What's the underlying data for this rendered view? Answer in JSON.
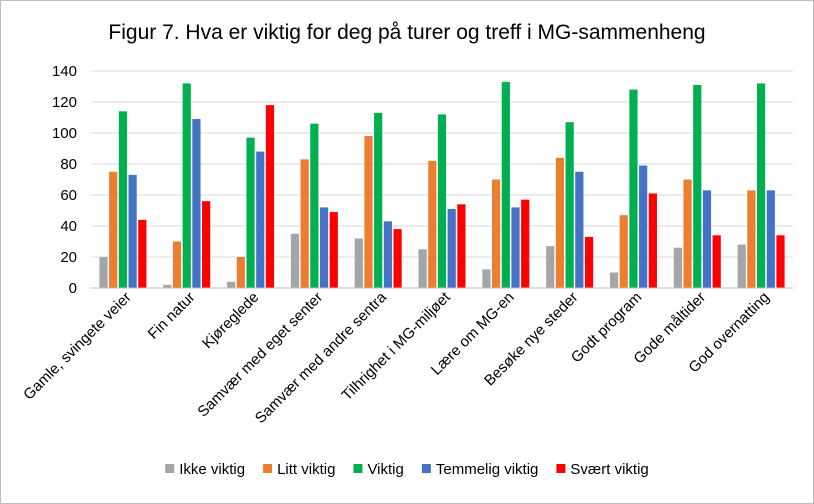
{
  "chart_data": {
    "type": "bar",
    "title": "Figur 7. Hva er viktig  for deg på turer og treff i MG-sammenheng",
    "xlabel": "",
    "ylabel": "",
    "ylim": [
      0,
      140
    ],
    "yticks": [
      0,
      20,
      40,
      60,
      80,
      100,
      120,
      140
    ],
    "grid": true,
    "legend_position": "bottom",
    "categories": [
      "Gamle, svingete veier",
      "Fin natur",
      "Kjøreglede",
      "Samvær med eget senter",
      "Samvær med andre sentra",
      "Tilhrighet i MG-miljøet",
      "Lære om MG-en",
      "Besøke nye steder",
      "Godt program",
      "Gode måltider",
      "God overnatting"
    ],
    "series": [
      {
        "name": "Ikke viktig",
        "color": "#a5a5a5",
        "values": [
          20,
          2,
          4,
          35,
          32,
          25,
          12,
          27,
          10,
          26,
          28
        ]
      },
      {
        "name": "Litt viktig",
        "color": "#ed7d31",
        "values": [
          75,
          30,
          20,
          83,
          98,
          82,
          70,
          84,
          47,
          70,
          63
        ]
      },
      {
        "name": "Viktig",
        "color": "#00b050",
        "values": [
          114,
          132,
          97,
          106,
          113,
          112,
          133,
          107,
          128,
          131,
          132
        ]
      },
      {
        "name": "Temmelig viktig",
        "color": "#4472c4",
        "values": [
          73,
          109,
          88,
          52,
          43,
          51,
          52,
          75,
          79,
          63,
          63
        ]
      },
      {
        "name": "Svært viktig",
        "color": "#ff0000",
        "values": [
          44,
          56,
          118,
          49,
          38,
          54,
          57,
          33,
          61,
          34,
          34
        ]
      }
    ]
  }
}
